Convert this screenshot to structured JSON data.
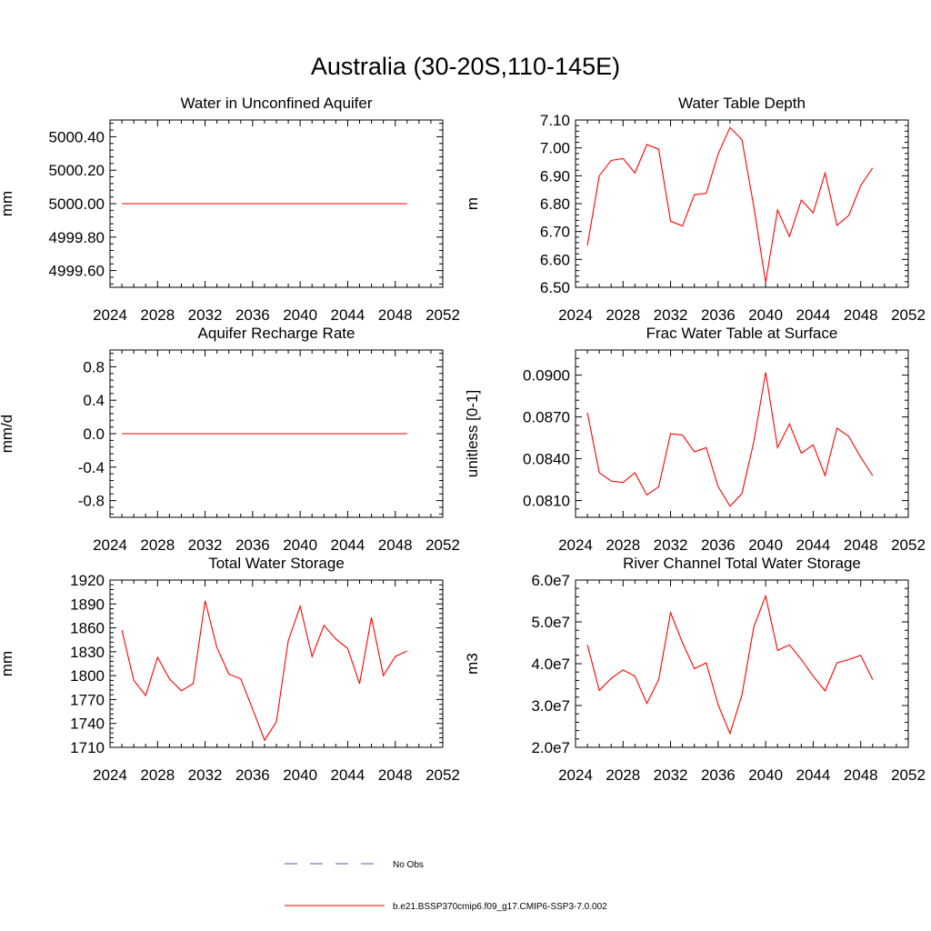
{
  "suptitle": "Australia (30-20S,110-145E)",
  "colors": {
    "model": "#ff0000",
    "obs": "#5a5aa8",
    "axis": "#000000"
  },
  "legend": {
    "items": [
      {
        "label": "No Obs",
        "style": "dashed",
        "color": "#5a5aa8"
      },
      {
        "label": "b.e21.BSSP370cmip6.f09_g17.CMIP6-SSP3-7.0.002",
        "style": "solid",
        "color": "#ff0000"
      }
    ]
  },
  "chart_data": [
    {
      "type": "line",
      "title": "Water in Unconfined Aquifer",
      "ylabel": "mm",
      "xlim": [
        2024,
        2052
      ],
      "ylim": [
        4999.5,
        5000.5
      ],
      "xticks": [
        2024,
        2028,
        2032,
        2036,
        2040,
        2044,
        2048,
        2052
      ],
      "yticks": [
        4999.6,
        4999.8,
        5000.0,
        5000.2,
        5000.4
      ],
      "ytick_labels": [
        "4999.60",
        "4999.80",
        "5000.00",
        "5000.20",
        "5000.40"
      ],
      "x": [
        2025,
        2026,
        2027,
        2028,
        2029,
        2030,
        2031,
        2032,
        2033,
        2034,
        2035,
        2036,
        2037,
        2038,
        2039,
        2040,
        2041,
        2042,
        2043,
        2044,
        2045,
        2046,
        2047,
        2048,
        2049
      ],
      "series": [
        {
          "values": [
            5000,
            5000,
            5000,
            5000,
            5000,
            5000,
            5000,
            5000,
            5000,
            5000,
            5000,
            5000,
            5000,
            5000,
            5000,
            5000,
            5000,
            5000,
            5000,
            5000,
            5000,
            5000,
            5000,
            5000,
            5000
          ]
        }
      ]
    },
    {
      "type": "line",
      "title": "Water Table Depth",
      "ylabel": "m",
      "xlim": [
        2024,
        2052
      ],
      "ylim": [
        6.5,
        7.1
      ],
      "xticks": [
        2024,
        2028,
        2032,
        2036,
        2040,
        2044,
        2048,
        2052
      ],
      "yticks": [
        6.5,
        6.6,
        6.7,
        6.8,
        6.9,
        7.0,
        7.1
      ],
      "ytick_labels": [
        "6.50",
        "6.60",
        "6.70",
        "6.80",
        "6.90",
        "7.00",
        "7.10"
      ],
      "x": [
        2025,
        2026,
        2027,
        2028,
        2029,
        2030,
        2031,
        2032,
        2033,
        2034,
        2035,
        2036,
        2037,
        2038,
        2039,
        2040,
        2041,
        2042,
        2043,
        2044,
        2045,
        2046,
        2047,
        2048,
        2049
      ],
      "series": [
        {
          "values": [
            6.65,
            6.9,
            6.955,
            6.962,
            6.91,
            7.012,
            6.995,
            6.737,
            6.72,
            6.832,
            6.837,
            6.978,
            7.073,
            7.03,
            6.79,
            6.517,
            6.777,
            6.682,
            6.813,
            6.767,
            6.91,
            6.722,
            6.758,
            6.865,
            6.928
          ]
        }
      ]
    },
    {
      "type": "line",
      "title": "Aquifer Recharge Rate",
      "ylabel": "mm/d",
      "xlim": [
        2024,
        2052
      ],
      "ylim": [
        -1.0,
        1.0
      ],
      "xticks": [
        2024,
        2028,
        2032,
        2036,
        2040,
        2044,
        2048,
        2052
      ],
      "yticks": [
        -0.8,
        -0.4,
        0.0,
        0.4,
        0.8
      ],
      "ytick_labels": [
        "-0.8",
        "-0.4",
        "0.0",
        "0.4",
        "0.8"
      ],
      "x": [
        2025,
        2026,
        2027,
        2028,
        2029,
        2030,
        2031,
        2032,
        2033,
        2034,
        2035,
        2036,
        2037,
        2038,
        2039,
        2040,
        2041,
        2042,
        2043,
        2044,
        2045,
        2046,
        2047,
        2048,
        2049
      ],
      "series": [
        {
          "values": [
            0,
            0,
            0,
            0,
            0,
            0,
            0,
            0,
            0,
            0,
            0,
            0,
            0,
            0,
            0,
            0,
            0,
            0,
            0,
            0,
            0,
            0,
            0,
            0,
            0
          ]
        }
      ]
    },
    {
      "type": "line",
      "title": "Frac Water Table at Surface",
      "ylabel": "unitless [0-1]",
      "xlim": [
        2024,
        2052
      ],
      "ylim": [
        0.0798,
        0.0918
      ],
      "xticks": [
        2024,
        2028,
        2032,
        2036,
        2040,
        2044,
        2048,
        2052
      ],
      "yticks": [
        0.081,
        0.084,
        0.087,
        0.09
      ],
      "ytick_labels": [
        "0.0810",
        "0.0840",
        "0.0870",
        "0.0900"
      ],
      "x": [
        2025,
        2026,
        2027,
        2028,
        2029,
        2030,
        2031,
        2032,
        2033,
        2034,
        2035,
        2036,
        2037,
        2038,
        2039,
        2040,
        2041,
        2042,
        2043,
        2044,
        2045,
        2046,
        2047,
        2048,
        2049
      ],
      "series": [
        {
          "values": [
            0.0873,
            0.083,
            0.0824,
            0.0823,
            0.083,
            0.0814,
            0.082,
            0.0858,
            0.0857,
            0.0845,
            0.0848,
            0.082,
            0.0806,
            0.0815,
            0.0852,
            0.0902,
            0.0848,
            0.0865,
            0.0844,
            0.085,
            0.0828,
            0.0862,
            0.0856,
            0.0841,
            0.0828
          ]
        }
      ]
    },
    {
      "type": "line",
      "title": "Total Water Storage",
      "ylabel": "mm",
      "xlim": [
        2024,
        2052
      ],
      "ylim": [
        1710,
        1920
      ],
      "xticks": [
        2024,
        2028,
        2032,
        2036,
        2040,
        2044,
        2048,
        2052
      ],
      "yticks": [
        1710,
        1740,
        1770,
        1800,
        1830,
        1860,
        1890,
        1920
      ],
      "ytick_labels": [
        "1710",
        "1740",
        "1770",
        "1800",
        "1830",
        "1860",
        "1890",
        "1920"
      ],
      "x": [
        2025,
        2026,
        2027,
        2028,
        2029,
        2030,
        2031,
        2032,
        2033,
        2034,
        2035,
        2036,
        2037,
        2038,
        2039,
        2040,
        2041,
        2042,
        2043,
        2044,
        2045,
        2046,
        2047,
        2048,
        2049
      ],
      "series": [
        {
          "values": [
            1857,
            1794,
            1775,
            1823,
            1796,
            1781,
            1790,
            1894,
            1835,
            1802,
            1796,
            1758,
            1719,
            1742,
            1844,
            1887,
            1824,
            1863,
            1846,
            1834,
            1790,
            1873,
            1800,
            1824,
            1831
          ]
        }
      ]
    },
    {
      "type": "line",
      "title": "River Channel Total Water Storage",
      "ylabel": "m3",
      "xlim": [
        2024,
        2052
      ],
      "ylim": [
        20000000.0,
        60000000.0
      ],
      "xticks": [
        2024,
        2028,
        2032,
        2036,
        2040,
        2044,
        2048,
        2052
      ],
      "yticks": [
        20000000.0,
        30000000.0,
        40000000.0,
        50000000.0,
        60000000.0
      ],
      "ytick_labels": [
        "2.0e7",
        "3.0e7",
        "4.0e7",
        "5.0e7",
        "6.0e7"
      ],
      "x": [
        2025,
        2026,
        2027,
        2028,
        2029,
        2030,
        2031,
        2032,
        2033,
        2034,
        2035,
        2036,
        2037,
        2038,
        2039,
        2040,
        2041,
        2042,
        2043,
        2044,
        2045,
        2046,
        2047,
        2048,
        2049
      ],
      "series": [
        {
          "values": [
            44500000.0,
            33600000.0,
            36500000.0,
            38500000.0,
            37000000.0,
            30500000.0,
            36200000.0,
            52200000.0,
            45000000.0,
            38800000.0,
            40200000.0,
            30200000.0,
            23300000.0,
            32500000.0,
            48800000.0,
            56200000.0,
            43200000.0,
            44500000.0,
            41000000.0,
            37000000.0,
            33500000.0,
            40200000.0,
            41000000.0,
            42000000.0,
            36200000.0
          ]
        }
      ]
    }
  ]
}
